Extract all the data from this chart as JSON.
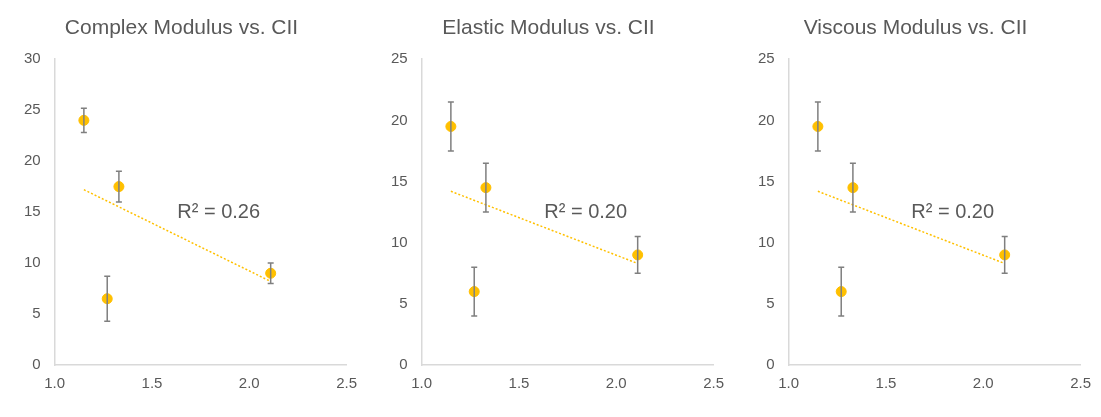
{
  "chart_data": [
    {
      "type": "scatter",
      "title": "Complex Modulus vs. CII",
      "xlim": [
        1.0,
        2.5
      ],
      "xticks": [
        {
          "value": 1.0,
          "label": "1.0"
        },
        {
          "value": 1.5,
          "label": "1.5"
        },
        {
          "value": 2.0,
          "label": "2.0"
        },
        {
          "value": 2.5,
          "label": "2.5"
        }
      ],
      "ylim": [
        0,
        30
      ],
      "yticks": [
        0,
        5,
        10,
        15,
        20,
        25,
        30
      ],
      "grid": false,
      "legend": false,
      "annotations": [
        "R² = 0.26"
      ],
      "series": [
        {
          "type": "scatter",
          "color": "#ffc000",
          "marker": "circle",
          "x": [
            1.15,
            1.27,
            1.33,
            2.11
          ],
          "values": [
            24.0,
            6.5,
            17.5,
            9.0
          ],
          "errors": [
            1.2,
            2.2,
            1.5,
            1.0
          ]
        },
        {
          "type": "line",
          "color": "#ffc000",
          "marker": "none",
          "line_style": "dotted",
          "x": [
            1.15,
            2.11
          ],
          "values": [
            17.2,
            8.2
          ]
        }
      ]
    },
    {
      "type": "scatter",
      "title": "Elastic Modulus vs. CII",
      "xlim": [
        1.0,
        2.5
      ],
      "xticks": [
        {
          "value": 1.0,
          "label": "1.0"
        },
        {
          "value": 1.5,
          "label": "1.5"
        },
        {
          "value": 2.0,
          "label": "2.0"
        },
        {
          "value": 2.5,
          "label": "2.5"
        }
      ],
      "ylim": [
        0,
        25
      ],
      "yticks": [
        0,
        5,
        10,
        15,
        20,
        25
      ],
      "grid": false,
      "legend": false,
      "annotations": [
        "R² = 0.20"
      ],
      "series": [
        {
          "type": "scatter",
          "color": "#ffc000",
          "marker": "circle",
          "x": [
            1.15,
            1.27,
            1.33,
            2.11
          ],
          "values": [
            19.5,
            6.0,
            14.5,
            9.0
          ],
          "errors": [
            2.0,
            2.0,
            2.0,
            1.5
          ]
        },
        {
          "type": "line",
          "color": "#ffc000",
          "marker": "none",
          "line_style": "dotted",
          "x": [
            1.15,
            2.11
          ],
          "values": [
            14.2,
            8.3
          ]
        }
      ]
    },
    {
      "type": "scatter",
      "title": "Viscous Modulus vs. CII",
      "xlim": [
        1.0,
        2.5
      ],
      "xticks": [
        {
          "value": 1.0,
          "label": "1.0"
        },
        {
          "value": 1.5,
          "label": "1.5"
        },
        {
          "value": 2.0,
          "label": "2.0"
        },
        {
          "value": 2.5,
          "label": "2.5"
        }
      ],
      "ylim": [
        0,
        25
      ],
      "yticks": [
        0,
        5,
        10,
        15,
        20,
        25
      ],
      "grid": false,
      "legend": false,
      "annotations": [
        "R² = 0.20"
      ],
      "series": [
        {
          "type": "scatter",
          "color": "#ffc000",
          "marker": "circle",
          "x": [
            1.15,
            1.27,
            1.33,
            2.11
          ],
          "values": [
            19.5,
            6.0,
            14.5,
            9.0
          ],
          "errors": [
            2.0,
            2.0,
            2.0,
            1.5
          ]
        },
        {
          "type": "line",
          "color": "#ffc000",
          "marker": "none",
          "line_style": "dotted",
          "x": [
            1.15,
            2.11
          ],
          "values": [
            14.2,
            8.3
          ]
        }
      ]
    }
  ]
}
